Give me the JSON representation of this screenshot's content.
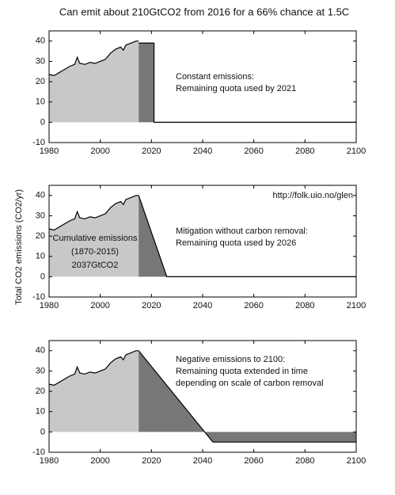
{
  "title": "Can emit about 210GtCO2 from 2016 for a 66% chance at 1.5C",
  "ylabel": "Total CO2 emissions (CO2/yr)",
  "chart_data": [
    {
      "type": "area",
      "xlim": [
        1980,
        2100
      ],
      "ylim": [
        -10,
        45
      ],
      "xticks": [
        1980,
        2000,
        2020,
        2040,
        2060,
        2080,
        2100
      ],
      "yticks": [
        -10,
        0,
        10,
        20,
        30,
        40
      ],
      "line_color": "#000000",
      "series": [
        {
          "color": "#c8c8c8",
          "x": [
            1980,
            1982,
            1984,
            1986,
            1988,
            1990,
            1991,
            1992,
            1994,
            1996,
            1998,
            2000,
            2002,
            2004,
            2006,
            2008,
            2009,
            2010,
            2012,
            2014,
            2015
          ],
          "values": [
            23.5,
            23,
            24.5,
            26,
            27.5,
            28.5,
            32,
            29,
            28.5,
            29.5,
            29,
            30,
            31,
            34,
            36,
            37,
            35.5,
            38,
            39,
            40,
            40
          ]
        },
        {
          "color": "#777777",
          "x": [
            2015,
            2021,
            2021,
            2100
          ],
          "values": [
            39,
            39,
            0,
            0
          ]
        }
      ],
      "annotations": [
        "Constant emissions:",
        "Remaining quota used by 2021"
      ]
    },
    {
      "type": "area",
      "xlim": [
        1980,
        2100
      ],
      "ylim": [
        -10,
        45
      ],
      "xticks": [
        1980,
        2000,
        2020,
        2040,
        2060,
        2080,
        2100
      ],
      "yticks": [
        -10,
        0,
        10,
        20,
        30,
        40
      ],
      "line_color": "#000000",
      "series": [
        {
          "color": "#c8c8c8",
          "x": [
            1980,
            1982,
            1984,
            1986,
            1988,
            1990,
            1991,
            1992,
            1994,
            1996,
            1998,
            2000,
            2002,
            2004,
            2006,
            2008,
            2009,
            2010,
            2012,
            2014,
            2015
          ],
          "values": [
            23.5,
            23,
            24.5,
            26,
            27.5,
            28.5,
            32,
            29,
            28.5,
            29.5,
            29,
            30,
            31,
            34,
            36,
            37,
            35.5,
            38,
            39,
            40,
            40
          ]
        },
        {
          "color": "#777777",
          "x": [
            2015,
            2026,
            2100
          ],
          "values": [
            40,
            0,
            0
          ]
        }
      ],
      "annotations": [
        "http://folk.uio.no/glen",
        "Mitigation without carbon removal:",
        "Remaining quota used by 2026",
        "Cumulative emissions",
        "(1870-2015)",
        "2037GtCO2"
      ]
    },
    {
      "type": "area",
      "xlim": [
        1980,
        2100
      ],
      "ylim": [
        -10,
        45
      ],
      "xticks": [
        1980,
        2000,
        2020,
        2040,
        2060,
        2080,
        2100
      ],
      "yticks": [
        -10,
        0,
        10,
        20,
        30,
        40
      ],
      "line_color": "#000000",
      "series": [
        {
          "color": "#c8c8c8",
          "x": [
            1980,
            1982,
            1984,
            1986,
            1988,
            1990,
            1991,
            1992,
            1994,
            1996,
            1998,
            2000,
            2002,
            2004,
            2006,
            2008,
            2009,
            2010,
            2012,
            2014,
            2015
          ],
          "values": [
            23.5,
            23,
            24.5,
            26,
            27.5,
            28.5,
            32,
            29,
            28.5,
            29.5,
            29,
            30,
            31,
            34,
            36,
            37,
            35.5,
            38,
            39,
            40,
            40
          ]
        },
        {
          "color": "#777777",
          "x": [
            2015,
            2044,
            2100
          ],
          "values": [
            40,
            -5,
            -5
          ]
        }
      ],
      "annotations": [
        "Negative emissions to 2100:",
        "Remaining quota extended in time",
        "depending on scale of carbon removal"
      ]
    }
  ]
}
